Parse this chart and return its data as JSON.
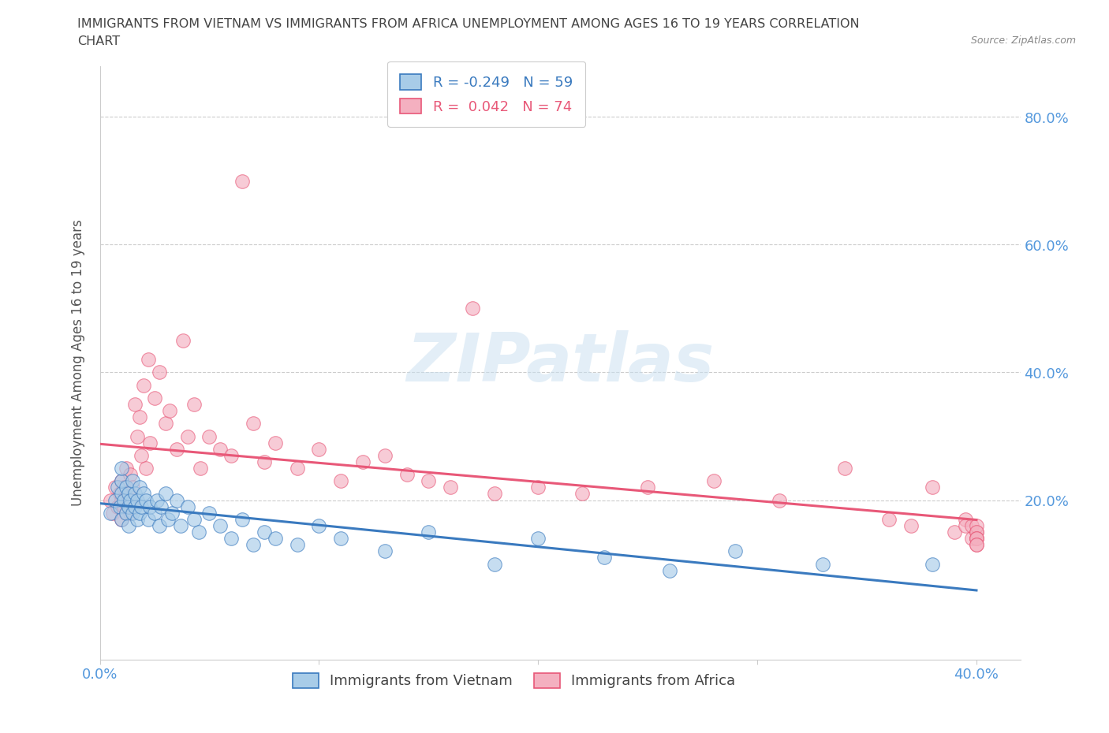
{
  "title_line1": "IMMIGRANTS FROM VIETNAM VS IMMIGRANTS FROM AFRICA UNEMPLOYMENT AMONG AGES 16 TO 19 YEARS CORRELATION",
  "title_line2": "CHART",
  "source_text": "Source: ZipAtlas.com",
  "ylabel": "Unemployment Among Ages 16 to 19 years",
  "ytick_labels": [
    "20.0%",
    "40.0%",
    "60.0%",
    "80.0%"
  ],
  "ytick_values": [
    0.2,
    0.4,
    0.6,
    0.8
  ],
  "xlim": [
    0.0,
    0.42
  ],
  "ylim": [
    -0.05,
    0.88
  ],
  "legend_r_vietnam": "-0.249",
  "legend_n_vietnam": "59",
  "legend_r_africa": "0.042",
  "legend_n_africa": "74",
  "color_vietnam": "#a8cce8",
  "color_africa": "#f4b0c0",
  "color_line_vietnam": "#3a7abf",
  "color_line_africa": "#e85878",
  "watermark_color": "#c8dff0",
  "background_color": "#ffffff",
  "grid_color": "#cccccc",
  "title_color": "#555555",
  "axis_label_color": "#5599dd",
  "vietnam_x": [
    0.005,
    0.007,
    0.008,
    0.009,
    0.01,
    0.01,
    0.01,
    0.01,
    0.011,
    0.012,
    0.012,
    0.013,
    0.013,
    0.013,
    0.014,
    0.015,
    0.015,
    0.016,
    0.016,
    0.017,
    0.017,
    0.018,
    0.018,
    0.019,
    0.02,
    0.021,
    0.022,
    0.023,
    0.025,
    0.026,
    0.027,
    0.028,
    0.03,
    0.031,
    0.033,
    0.035,
    0.037,
    0.04,
    0.043,
    0.045,
    0.05,
    0.055,
    0.06,
    0.065,
    0.07,
    0.075,
    0.08,
    0.09,
    0.1,
    0.11,
    0.13,
    0.15,
    0.18,
    0.2,
    0.23,
    0.26,
    0.29,
    0.33,
    0.38
  ],
  "vietnam_y": [
    0.18,
    0.2,
    0.22,
    0.19,
    0.21,
    0.23,
    0.17,
    0.25,
    0.2,
    0.18,
    0.22,
    0.19,
    0.21,
    0.16,
    0.2,
    0.18,
    0.23,
    0.19,
    0.21,
    0.17,
    0.2,
    0.22,
    0.18,
    0.19,
    0.21,
    0.2,
    0.17,
    0.19,
    0.18,
    0.2,
    0.16,
    0.19,
    0.21,
    0.17,
    0.18,
    0.2,
    0.16,
    0.19,
    0.17,
    0.15,
    0.18,
    0.16,
    0.14,
    0.17,
    0.13,
    0.15,
    0.14,
    0.13,
    0.16,
    0.14,
    0.12,
    0.15,
    0.1,
    0.14,
    0.11,
    0.09,
    0.12,
    0.1,
    0.1
  ],
  "africa_x": [
    0.005,
    0.006,
    0.007,
    0.008,
    0.009,
    0.01,
    0.01,
    0.01,
    0.011,
    0.011,
    0.012,
    0.012,
    0.013,
    0.013,
    0.014,
    0.014,
    0.015,
    0.015,
    0.016,
    0.017,
    0.018,
    0.019,
    0.02,
    0.021,
    0.022,
    0.023,
    0.025,
    0.027,
    0.03,
    0.032,
    0.035,
    0.038,
    0.04,
    0.043,
    0.046,
    0.05,
    0.055,
    0.06,
    0.065,
    0.07,
    0.075,
    0.08,
    0.09,
    0.1,
    0.11,
    0.12,
    0.13,
    0.14,
    0.15,
    0.16,
    0.17,
    0.18,
    0.2,
    0.22,
    0.25,
    0.28,
    0.31,
    0.34,
    0.36,
    0.37,
    0.38,
    0.39,
    0.395,
    0.395,
    0.398,
    0.398,
    0.4,
    0.4,
    0.4,
    0.4,
    0.4,
    0.4,
    0.4,
    0.4
  ],
  "africa_y": [
    0.2,
    0.18,
    0.22,
    0.19,
    0.21,
    0.17,
    0.23,
    0.2,
    0.19,
    0.22,
    0.18,
    0.25,
    0.21,
    0.2,
    0.24,
    0.18,
    0.22,
    0.19,
    0.35,
    0.3,
    0.33,
    0.27,
    0.38,
    0.25,
    0.42,
    0.29,
    0.36,
    0.4,
    0.32,
    0.34,
    0.28,
    0.45,
    0.3,
    0.35,
    0.25,
    0.3,
    0.28,
    0.27,
    0.7,
    0.32,
    0.26,
    0.29,
    0.25,
    0.28,
    0.23,
    0.26,
    0.27,
    0.24,
    0.23,
    0.22,
    0.5,
    0.21,
    0.22,
    0.21,
    0.22,
    0.23,
    0.2,
    0.25,
    0.17,
    0.16,
    0.22,
    0.15,
    0.17,
    0.16,
    0.14,
    0.16,
    0.15,
    0.14,
    0.16,
    0.15,
    0.14,
    0.14,
    0.13,
    0.13
  ]
}
